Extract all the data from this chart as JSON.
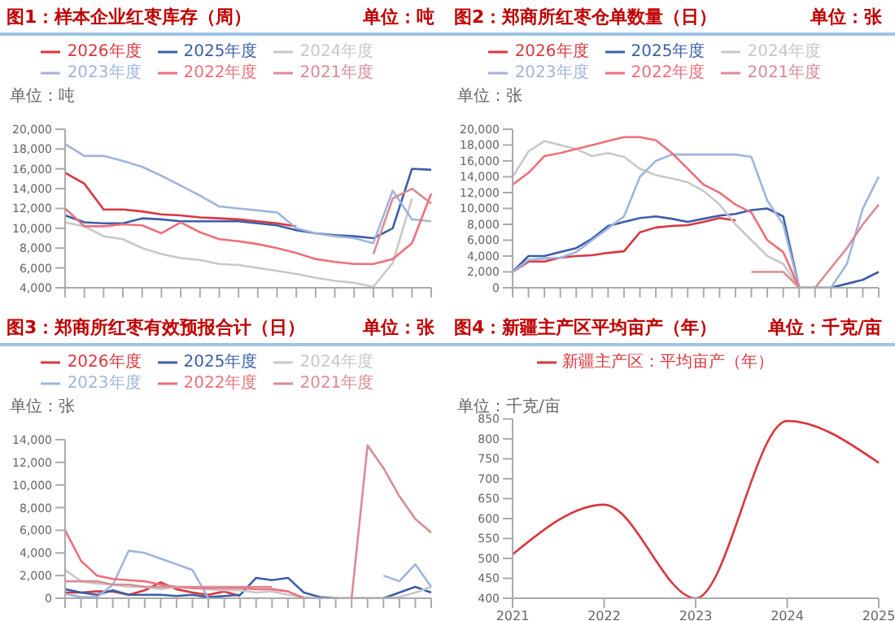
{
  "chart_data": [
    {
      "type": "line",
      "title": "图1：样本企业红枣库存（周）",
      "subtitle": "单位：吨",
      "ylabel": "单位：吨",
      "legend": "top",
      "marker": "none",
      "categories": [
        null,
        null,
        null,
        null,
        null,
        null,
        null,
        null,
        null,
        null,
        null,
        null,
        null,
        null,
        null,
        null,
        null,
        null,
        null,
        null
      ],
      "ylim": [
        4000,
        20000
      ],
      "yticks": [
        {
          "value": 4000,
          "label": "4,000"
        },
        {
          "value": 6000,
          "label": "6,000"
        },
        {
          "value": 8000,
          "label": "8,000"
        },
        {
          "value": 10000,
          "label": "10,000"
        },
        {
          "value": 12000,
          "label": "12,000"
        },
        {
          "value": 14000,
          "label": "14,000"
        },
        {
          "value": 16000,
          "label": "16,000"
        },
        {
          "value": 18000,
          "label": "18,000"
        },
        {
          "value": 20000,
          "label": "20,000"
        }
      ],
      "series": [
        {
          "name": "2026年度",
          "color": "#d9363e",
          "values": [
            15600,
            14500,
            11900,
            11900,
            11700,
            11400,
            11300,
            11100,
            11000,
            10900,
            10700,
            10500,
            10200,
            null,
            null,
            null,
            null,
            null,
            null,
            null
          ]
        },
        {
          "name": "2025年度",
          "color": "#3a5ea8",
          "values": [
            11300,
            10600,
            10500,
            10500,
            11000,
            10900,
            10700,
            10700,
            10700,
            10700,
            10500,
            10300,
            9800,
            9500,
            9300,
            9200,
            9000,
            10000,
            16000,
            15900
          ]
        },
        {
          "name": "2024年度",
          "color": "#c8c8c8",
          "values": [
            10600,
            10200,
            9200,
            8900,
            8000,
            7400,
            7000,
            6800,
            6400,
            6300,
            6000,
            5700,
            5400,
            5000,
            4700,
            4500,
            4100,
            6500,
            13000,
            null
          ]
        },
        {
          "name": "2023年度",
          "color": "#9fb4dd",
          "values": [
            18500,
            17300,
            17300,
            16800,
            16200,
            15300,
            14300,
            13300,
            12200,
            12000,
            11800,
            11600,
            10000,
            9500,
            9200,
            9000,
            8500,
            13800,
            10900,
            10700
          ]
        },
        {
          "name": "2022年度",
          "color": "#ee6f7b",
          "values": [
            12000,
            10200,
            10200,
            10400,
            10300,
            9500,
            10600,
            9600,
            8900,
            8700,
            8400,
            8000,
            7500,
            6900,
            6600,
            6400,
            6400,
            6900,
            8500,
            13500
          ]
        },
        {
          "name": "2021年度",
          "color": "#d98c94",
          "values": [
            null,
            null,
            null,
            null,
            null,
            null,
            null,
            null,
            null,
            null,
            null,
            null,
            null,
            null,
            null,
            null,
            7400,
            13000,
            14000,
            12500
          ]
        }
      ]
    },
    {
      "type": "line",
      "title": "图2：郑商所红枣仓单数量（日）",
      "subtitle": "单位：张",
      "ylabel": "单位：张",
      "legend": "top",
      "marker": "none",
      "categories": [
        null,
        null,
        null,
        null,
        null,
        null,
        null,
        null,
        null,
        null,
        null,
        null,
        null,
        null,
        null,
        null,
        null,
        null,
        null,
        null,
        null,
        null,
        null,
        null
      ],
      "ylim": [
        0,
        20000
      ],
      "yticks": [
        {
          "value": 0,
          "label": "0"
        },
        {
          "value": 2000,
          "label": "2,000"
        },
        {
          "value": 4000,
          "label": "4,000"
        },
        {
          "value": 6000,
          "label": "6,000"
        },
        {
          "value": 8000,
          "label": "8,000"
        },
        {
          "value": 10000,
          "label": "10,000"
        },
        {
          "value": 12000,
          "label": "12,000"
        },
        {
          "value": 14000,
          "label": "14,000"
        },
        {
          "value": 16000,
          "label": "16,000"
        },
        {
          "value": 18000,
          "label": "18,000"
        },
        {
          "value": 20000,
          "label": "20,000"
        }
      ],
      "series": [
        {
          "name": "2026年度",
          "color": "#d9363e",
          "values": [
            2000,
            3300,
            3300,
            3800,
            4000,
            4100,
            4400,
            4600,
            7000,
            7600,
            7800,
            7900,
            8300,
            8800,
            8500,
            null,
            null,
            null,
            null,
            null,
            null,
            null,
            null,
            null
          ]
        },
        {
          "name": "2025年度",
          "color": "#3a5ea8",
          "values": [
            2000,
            4000,
            4000,
            4500,
            5000,
            6200,
            7800,
            8300,
            8800,
            9000,
            8700,
            8300,
            8700,
            9100,
            9300,
            9800,
            10000,
            9000,
            0,
            0,
            0,
            500,
            1000,
            2000
          ]
        },
        {
          "name": "2024年度",
          "color": "#c8c8c8",
          "values": [
            14000,
            17200,
            18500,
            18000,
            17500,
            16600,
            17000,
            16500,
            15000,
            14200,
            13800,
            13300,
            12200,
            10500,
            8000,
            6000,
            4000,
            3000,
            0,
            null,
            null,
            null,
            null,
            null
          ]
        },
        {
          "name": "2023年度",
          "color": "#9fb4dd",
          "values": [
            2000,
            3500,
            3700,
            3800,
            4500,
            6000,
            7500,
            9000,
            14000,
            16000,
            16800,
            16800,
            16800,
            16800,
            16800,
            16500,
            11000,
            8000,
            0,
            0,
            0,
            3000,
            10000,
            14000
          ]
        },
        {
          "name": "2022年度",
          "color": "#ee6f7b",
          "values": [
            13000,
            14500,
            16600,
            17000,
            17500,
            18000,
            18500,
            19000,
            19000,
            18600,
            17000,
            15000,
            13000,
            12000,
            10500,
            9500,
            6000,
            4500,
            0,
            null,
            null,
            null,
            null,
            null
          ]
        },
        {
          "name": "2021年度",
          "color": "#d98c94",
          "values": [
            null,
            null,
            null,
            null,
            null,
            null,
            null,
            null,
            null,
            null,
            null,
            null,
            null,
            null,
            null,
            2000,
            2000,
            2000,
            0,
            0,
            2500,
            5000,
            8000,
            10500
          ]
        }
      ]
    },
    {
      "type": "line",
      "title": "图3：郑商所红枣有效预报合计（日）",
      "subtitle": "单位：张",
      "ylabel": "单位：张",
      "legend": "top",
      "marker": "none",
      "categories": [
        null,
        null,
        null,
        null,
        null,
        null,
        null,
        null,
        null,
        null,
        null,
        null,
        null,
        null,
        null,
        null,
        null,
        null,
        null,
        null,
        null,
        null,
        null,
        null
      ],
      "ylim": [
        0,
        14000
      ],
      "yticks": [
        {
          "value": 0,
          "label": "0"
        },
        {
          "value": 2000,
          "label": "2,000"
        },
        {
          "value": 4000,
          "label": "4,000"
        },
        {
          "value": 6000,
          "label": "6,000"
        },
        {
          "value": 8000,
          "label": "8,000"
        },
        {
          "value": 10000,
          "label": "10,000"
        },
        {
          "value": 12000,
          "label": "12,000"
        },
        {
          "value": 14000,
          "label": "14,000"
        }
      ],
      "series": [
        {
          "name": "2026年度",
          "color": "#d9363e",
          "values": [
            500,
            500,
            600,
            600,
            300,
            700,
            1400,
            800,
            500,
            300,
            600,
            200,
            null,
            null,
            null,
            null,
            null,
            null,
            null,
            null,
            null,
            null,
            null,
            null
          ]
        },
        {
          "name": "2025年度",
          "color": "#3a5ea8",
          "values": [
            800,
            500,
            300,
            700,
            300,
            300,
            300,
            200,
            300,
            100,
            200,
            300,
            1800,
            1600,
            1800,
            500,
            100,
            0,
            0,
            0,
            0,
            500,
            1000,
            500
          ]
        },
        {
          "name": "2024年度",
          "color": "#c8c8c8",
          "values": [
            2500,
            1500,
            1300,
            1200,
            1000,
            1000,
            800,
            1000,
            900,
            800,
            700,
            700,
            500,
            600,
            300,
            100,
            0,
            0,
            0,
            0,
            0,
            100,
            500,
            1000
          ]
        },
        {
          "name": "2023年度",
          "color": "#9fb4dd",
          "values": [
            400,
            100,
            100,
            1200,
            4200,
            4000,
            3500,
            3000,
            2500,
            0,
            null,
            null,
            null,
            null,
            null,
            null,
            null,
            null,
            null,
            null,
            2000,
            1500,
            3000,
            1000
          ]
        },
        {
          "name": "2022年度",
          "color": "#ee6f7b",
          "values": [
            6000,
            3300,
            2000,
            1700,
            1600,
            1500,
            1200,
            1000,
            900,
            900,
            900,
            900,
            800,
            800,
            600,
            0,
            null,
            null,
            null,
            null,
            null,
            null,
            null,
            null
          ]
        },
        {
          "name": "2021年度",
          "color": "#d98c94",
          "values": [
            1500,
            1500,
            1500,
            1200,
            1200,
            1000,
            1000,
            1000,
            1000,
            1000,
            1000,
            1000,
            1000,
            1000,
            null,
            null,
            null,
            null,
            0,
            13500,
            11500,
            9000,
            7000,
            5800
          ]
        }
      ]
    },
    {
      "type": "line",
      "title": "图4：新疆主产区平均亩产（年）",
      "subtitle": "单位：千克/亩",
      "ylabel": "单位：千克/亩",
      "legend": "top",
      "marker": "none",
      "categories": [
        "2021",
        "2022",
        "2023",
        "2024",
        "2025"
      ],
      "ylim": [
        400,
        850
      ],
      "yticks": [
        400,
        450,
        500,
        550,
        600,
        650,
        700,
        750,
        800,
        850
      ],
      "series": [
        {
          "name": "新疆主产区：平均亩产（年）",
          "color": "#d9363e",
          "values": [
            510,
            635,
            400,
            845,
            740
          ]
        }
      ]
    }
  ]
}
